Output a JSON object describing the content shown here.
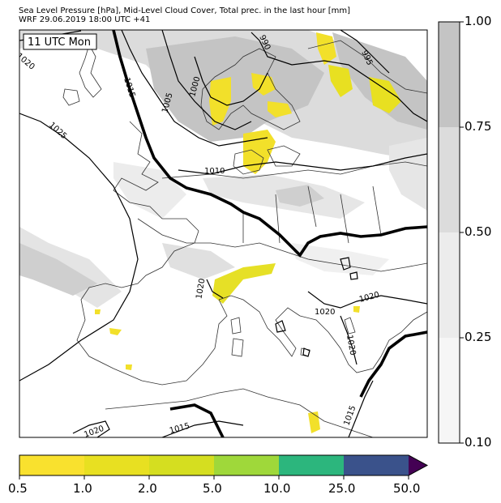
{
  "header": {
    "title_line1": "Sea Level Pressure [hPa], Mid-Level Cloud Cover, Total prec. in the last hour [mm]",
    "title_line2": "WRF 29.06.2019 18:00 UTC +41"
  },
  "map": {
    "time_box": "11 UTC Mon",
    "isobar_labels": [
      "1020",
      "1015",
      "1025",
      "1000",
      "1005",
      "990",
      "995",
      "1010",
      "1020",
      "1020",
      "1020",
      "1020",
      "1020",
      "1015",
      "1015"
    ]
  },
  "cloud_colorbar": {
    "labels": [
      "1.00",
      "0.75",
      "0.50",
      "0.25",
      "0.10"
    ],
    "colors": [
      "#c4c4c4",
      "#dcdcdc",
      "#ececec",
      "#f6f6f6"
    ]
  },
  "precip_colorbar": {
    "labels": [
      "0.5",
      "1.0",
      "2.0",
      "5.0",
      "10.0",
      "25.0",
      "50.0"
    ],
    "colors": [
      "#f9e12e",
      "#e8e021",
      "#d5de20",
      "#9fd83a",
      "#48bd6c",
      "#2cb67d",
      "#3a528b",
      "#440154"
    ]
  }
}
